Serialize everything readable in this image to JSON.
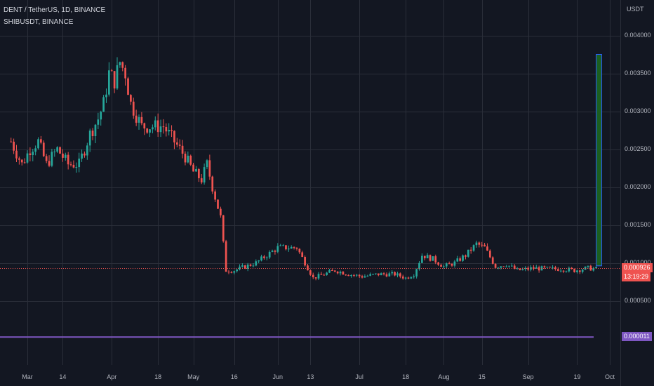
{
  "header": {
    "main_symbol": "DENT / TetherUS, 1D, BINANCE",
    "compare_symbol": "SHIBUSDT, BINANCE"
  },
  "colors": {
    "background": "#131722",
    "grid": "#2a2e39",
    "up": "#26a69a",
    "down": "#ef5350",
    "compare_line": "#7e57c2",
    "projection_fill": "#1b5e20",
    "projection_border": "#2962ff"
  },
  "price_badges": {
    "last_price": "0.000926",
    "countdown": "13:19:29",
    "compare_price": "0.000011"
  },
  "chart_data": {
    "type": "candlestick",
    "unit": "USDT",
    "ylim": [
      0.0,
      0.0043
    ],
    "y_ticks": [
      "0.004000",
      "0.003500",
      "0.003000",
      "0.002500",
      "0.002000",
      "0.001500",
      "0.001000",
      "0.000500"
    ],
    "y_tick_values": [
      0.004,
      0.0035,
      0.003,
      0.0025,
      0.002,
      0.0015,
      0.001,
      0.0005
    ],
    "x_ticks": [
      "Mar",
      "14",
      "Apr",
      "18",
      "May",
      "16",
      "Jun",
      "13",
      "Jul",
      "18",
      "Aug",
      "15",
      "Sep",
      "19",
      "Oct"
    ],
    "x_tick_dates": [
      "2021-03-01",
      "2021-03-14",
      "2021-04-01",
      "2021-04-18",
      "2021-05-01",
      "2021-05-16",
      "2021-06-01",
      "2021-06-13",
      "2021-07-01",
      "2021-07-18",
      "2021-08-01",
      "2021-08-15",
      "2021-09-01",
      "2021-09-19",
      "2021-10-01"
    ],
    "close_path": [
      [
        "2021-02-23",
        0.0026
      ],
      [
        "2021-02-27",
        0.0023
      ],
      [
        "2021-03-02",
        0.0025
      ],
      [
        "2021-03-05",
        0.0026
      ],
      [
        "2021-03-08",
        0.0023
      ],
      [
        "2021-03-12",
        0.0025
      ],
      [
        "2021-03-16",
        0.0023
      ],
      [
        "2021-03-20",
        0.0023
      ],
      [
        "2021-03-24",
        0.0027
      ],
      [
        "2021-03-27",
        0.0029
      ],
      [
        "2021-03-29",
        0.0031
      ],
      [
        "2021-03-31",
        0.0035
      ],
      [
        "2021-04-02",
        0.0034
      ],
      [
        "2021-04-04",
        0.00365
      ],
      [
        "2021-04-06",
        0.0035
      ],
      [
        "2021-04-08",
        0.0031
      ],
      [
        "2021-04-12",
        0.0028
      ],
      [
        "2021-04-16",
        0.0028
      ],
      [
        "2021-04-20",
        0.0028
      ],
      [
        "2021-04-24",
        0.0026
      ],
      [
        "2021-04-28",
        0.0024
      ],
      [
        "2021-05-01",
        0.0022
      ],
      [
        "2021-05-04",
        0.0021
      ],
      [
        "2021-05-06",
        0.0023
      ],
      [
        "2021-05-08",
        0.002
      ],
      [
        "2021-05-11",
        0.0016
      ],
      [
        "2021-05-13",
        0.0009
      ],
      [
        "2021-05-16",
        0.0009
      ],
      [
        "2021-05-20",
        0.00095
      ],
      [
        "2021-05-24",
        0.001
      ],
      [
        "2021-05-28",
        0.0011
      ],
      [
        "2021-06-01",
        0.0012
      ],
      [
        "2021-06-04",
        0.0012
      ],
      [
        "2021-06-08",
        0.0012
      ],
      [
        "2021-06-11",
        0.001
      ],
      [
        "2021-06-14",
        0.0008
      ],
      [
        "2021-06-18",
        0.00085
      ],
      [
        "2021-06-22",
        0.0009
      ],
      [
        "2021-06-27",
        0.00085
      ],
      [
        "2021-07-02",
        0.00082
      ],
      [
        "2021-07-08",
        0.00085
      ],
      [
        "2021-07-14",
        0.00085
      ],
      [
        "2021-07-18",
        0.0008
      ],
      [
        "2021-07-21",
        0.00085
      ],
      [
        "2021-07-24",
        0.0011
      ],
      [
        "2021-07-28",
        0.00105
      ],
      [
        "2021-08-01",
        0.00095
      ],
      [
        "2021-08-05",
        0.001
      ],
      [
        "2021-08-09",
        0.0011
      ],
      [
        "2021-08-13",
        0.00125
      ],
      [
        "2021-08-16",
        0.0012
      ],
      [
        "2021-08-20",
        0.00095
      ],
      [
        "2021-08-24",
        0.00098
      ],
      [
        "2021-08-28",
        0.0009
      ],
      [
        "2021-09-03",
        0.00093
      ],
      [
        "2021-09-08",
        0.00092
      ],
      [
        "2021-09-13",
        0.00092
      ],
      [
        "2021-09-18",
        0.0009
      ],
      [
        "2021-09-23",
        0.00093
      ],
      [
        "2021-09-26",
        0.00092
      ]
    ],
    "last_price": 0.000926,
    "projection_box": {
      "start": "2021-09-26",
      "end": "2021-09-28",
      "low": 0.00096,
      "high": 0.00375
    },
    "compare_series": {
      "name": "SHIBUSDT, BINANCE",
      "value": 1.1e-05
    }
  }
}
